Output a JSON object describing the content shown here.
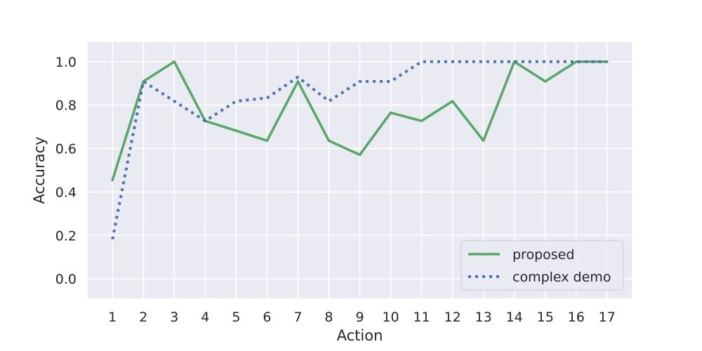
{
  "chart_data": {
    "type": "line",
    "xlabel": "Action",
    "ylabel": "Accuracy",
    "x": [
      1,
      2,
      3,
      4,
      5,
      6,
      7,
      8,
      9,
      10,
      11,
      12,
      13,
      14,
      15,
      16,
      17
    ],
    "x_tick_labels": [
      "1",
      "2",
      "3",
      "4",
      "5",
      "6",
      "7",
      "8",
      "9",
      "10",
      "11",
      "12",
      "13",
      "14",
      "15",
      "16",
      "17"
    ],
    "y_ticks": [
      0.0,
      0.2,
      0.4,
      0.6,
      0.8,
      1.0
    ],
    "y_tick_labels": [
      "0.0",
      "0.2",
      "0.4",
      "0.6",
      "0.8",
      "1.0"
    ],
    "xlim": [
      0.2,
      17.8
    ],
    "ylim": [
      -0.09,
      1.09
    ],
    "grid": true,
    "legend_position": "lower-right",
    "background_color": "#eaeaf2",
    "series": [
      {
        "name": "proposed",
        "style": "solid",
        "color": "#55a868",
        "values": [
          0.455,
          0.909,
          1.0,
          0.727,
          0.682,
          0.636,
          0.909,
          0.636,
          0.571,
          0.765,
          0.727,
          0.818,
          0.636,
          1.0,
          0.909,
          1.0,
          1.0
        ]
      },
      {
        "name": "complex demo",
        "style": "dotted",
        "color": "#4c72b0",
        "values": [
          0.182,
          0.909,
          0.818,
          0.727,
          0.818,
          0.833,
          0.929,
          0.818,
          0.909,
          0.909,
          1.0,
          1.0,
          1.0,
          1.0,
          1.0,
          1.0,
          1.0
        ]
      }
    ]
  }
}
